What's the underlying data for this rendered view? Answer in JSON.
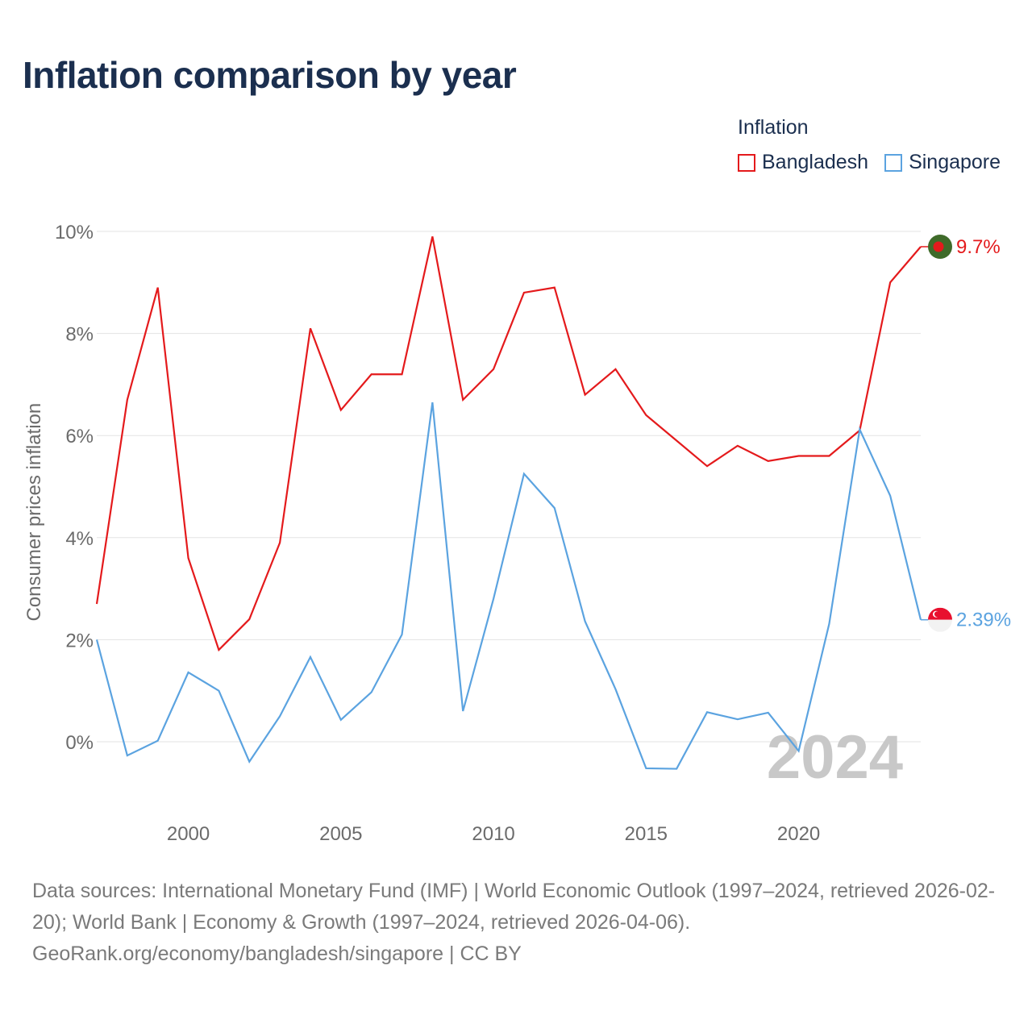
{
  "title": "Inflation comparison by year",
  "legend": {
    "title": "Inflation",
    "items": [
      {
        "label": "Bangladesh",
        "color": "#e41a1c"
      },
      {
        "label": "Singapore",
        "color": "#5ba3e0"
      }
    ]
  },
  "footer": {
    "sources": "Data sources: International Monetary Fund (IMF) | World Economic Outlook (1997–2024, retrieved 2026-02-20); World Bank | Economy & Growth (1997–2024, retrieved 2026-04-06).",
    "link": "GeoRank.org/economy/bangladesh/singapore | CC BY"
  },
  "chart_data": {
    "type": "line",
    "title": "Inflation comparison by year",
    "ylabel": "Consumer prices inflation",
    "xlabel": "",
    "xlim": [
      1997,
      2024
    ],
    "ylim": [
      -1.5,
      10
    ],
    "x_ticks": [
      2000,
      2005,
      2010,
      2015,
      2020
    ],
    "y_ticks": [
      0,
      2,
      4,
      6,
      8,
      10
    ],
    "y_tick_labels": [
      "0%",
      "2%",
      "4%",
      "6%",
      "8%",
      "10%"
    ],
    "x_tick_labels": [
      "2000",
      "2005",
      "2010",
      "2015",
      "2020"
    ],
    "watermark_year": "2024",
    "grid": true,
    "legend_position": "top-right",
    "x": [
      1997,
      1998,
      1999,
      2000,
      2001,
      2002,
      2003,
      2004,
      2005,
      2006,
      2007,
      2008,
      2009,
      2010,
      2011,
      2012,
      2013,
      2014,
      2015,
      2016,
      2017,
      2018,
      2019,
      2020,
      2021,
      2022,
      2023,
      2024
    ],
    "series": [
      {
        "name": "Bangladesh",
        "color": "#e41a1c",
        "end_label": "9.7%",
        "flag": "bangladesh",
        "values": [
          2.7,
          6.7,
          8.9,
          3.6,
          1.8,
          2.4,
          3.9,
          8.1,
          6.5,
          7.2,
          7.2,
          9.9,
          6.7,
          7.3,
          8.8,
          8.9,
          6.8,
          7.3,
          6.4,
          5.9,
          5.4,
          5.8,
          5.5,
          5.6,
          5.6,
          6.1,
          9.0,
          9.7
        ]
      },
      {
        "name": "Singapore",
        "color": "#5ba3e0",
        "end_label": "2.39%",
        "flag": "singapore",
        "values": [
          2.0,
          -0.27,
          0.02,
          1.36,
          1.0,
          -0.39,
          0.5,
          1.66,
          0.43,
          0.97,
          2.1,
          6.65,
          0.6,
          2.8,
          5.25,
          4.58,
          2.36,
          1.03,
          -0.52,
          -0.53,
          0.58,
          0.44,
          0.57,
          -0.18,
          2.31,
          6.12,
          4.82,
          2.39
        ]
      }
    ]
  }
}
